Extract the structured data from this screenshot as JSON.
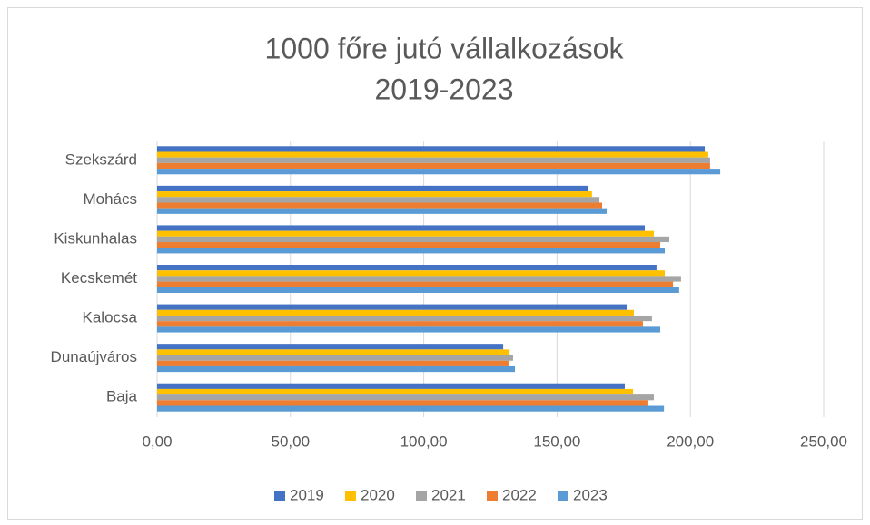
{
  "chart_data": {
    "type": "hbar",
    "title": "1000 főre jutó vállalkozások",
    "subtitle": "2019-2023",
    "categories": [
      "Baja",
      "Dunaújváros",
      "Kalocsa",
      "Kecskemét",
      "Kiskunhalas",
      "Mohács",
      "Szekszárd"
    ],
    "series": [
      {
        "name": "2019",
        "color": "#4472c4",
        "values": [
          175.4,
          129.8,
          176.1,
          187.3,
          182.9,
          161.8,
          205.4
        ]
      },
      {
        "name": "2020",
        "color": "#ffc000",
        "values": [
          178.5,
          132.2,
          178.8,
          190.4,
          186.3,
          163.1,
          206.7
        ]
      },
      {
        "name": "2021",
        "color": "#a5a5a5",
        "values": [
          186.3,
          133.5,
          185.6,
          196.5,
          192.1,
          165.9,
          207.4
        ]
      },
      {
        "name": "2022",
        "color": "#ed7d31",
        "values": [
          183.9,
          131.8,
          182.2,
          193.5,
          188.7,
          166.9,
          207.4
        ]
      },
      {
        "name": "2023",
        "color": "#5b9bd5",
        "values": [
          190.1,
          134.2,
          188.7,
          195.8,
          190.4,
          168.6,
          211.2
        ]
      }
    ],
    "xlim": [
      0,
      250
    ],
    "xticks": [
      {
        "value": 0,
        "label": "0,00"
      },
      {
        "value": 50,
        "label": "50,00"
      },
      {
        "value": 100,
        "label": "100,00"
      },
      {
        "value": 150,
        "label": "150,00"
      },
      {
        "value": 200,
        "label": "200,00"
      },
      {
        "value": 250,
        "label": "250,00"
      }
    ],
    "grid": true,
    "legend": "bottom"
  }
}
